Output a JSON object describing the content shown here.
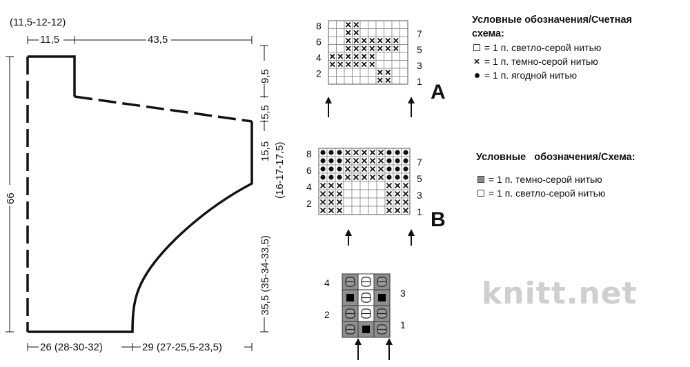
{
  "schematic": {
    "top_note": "(11,5-12-12)",
    "dim_top_left": "11,5",
    "dim_top_right": "43,5",
    "dim_height": "66",
    "dim_right_top": "9,5",
    "dim_right_2": "5,5",
    "dim_right_3": "15,5",
    "dim_right_3_alt": "(16-17-17,5)",
    "dim_right_4": "35,5 (35-34-33,5)",
    "dim_bottom_left": "26 (28-30-32)",
    "dim_bottom_right": "29 (27-25,5-23,5)"
  },
  "chart_a": {
    "label": "A",
    "rows_left": [
      "8",
      "6",
      "4",
      "2"
    ],
    "rows_right": [
      "7",
      "5",
      "3",
      "1"
    ],
    "cols": 10,
    "grid": [
      "..xx......",
      "..xx......",
      "..xxxxxxx.",
      "..xxxxxxx.",
      "xxxxxx....",
      "xxxxxx....",
      "......xx..",
      "......xx.."
    ]
  },
  "chart_b": {
    "label": "B",
    "rows_left": [
      "8",
      "6",
      "4",
      "2"
    ],
    "rows_right": [
      "7",
      "5",
      "3",
      "1"
    ],
    "cols": 11,
    "grid": [
      "oooxxxxxooo",
      "oooxxxxxooo",
      "oooxxxxxooo",
      "oooxxxxxooo",
      "xxx.....xxx",
      "xxx.....xxx",
      "xxx.....xxx",
      "xxx.....xxx"
    ]
  },
  "chart_c": {
    "rows_left": [
      "4",
      "2"
    ],
    "rows_right": [
      "3",
      "1"
    ],
    "cols": 3,
    "grid": [
      [
        "d",
        "w",
        "d"
      ],
      [
        "b",
        "w",
        "b"
      ],
      [
        "d",
        "w",
        "d"
      ],
      [
        "d",
        "b",
        "d"
      ]
    ]
  },
  "legend1": {
    "title_line1": "Условные обозначения/Счетная",
    "title_line2": "схема:",
    "items": [
      {
        "symbol": "white-square",
        "text": "= 1 п. светло-серой нитью"
      },
      {
        "symbol": "cross",
        "text": "= 1 п. темно-серой нитью"
      },
      {
        "symbol": "dot",
        "text": "= 1 п. ягодной нитью"
      }
    ]
  },
  "legend2": {
    "title": "Условные   обозначения/Схема:",
    "items": [
      {
        "symbol": "dark-square",
        "text": "= 1 п. темно-серой нитью"
      },
      {
        "symbol": "white-square",
        "text": "= 1 п. светло-серой нитью"
      }
    ]
  },
  "watermark": "knitt.net"
}
